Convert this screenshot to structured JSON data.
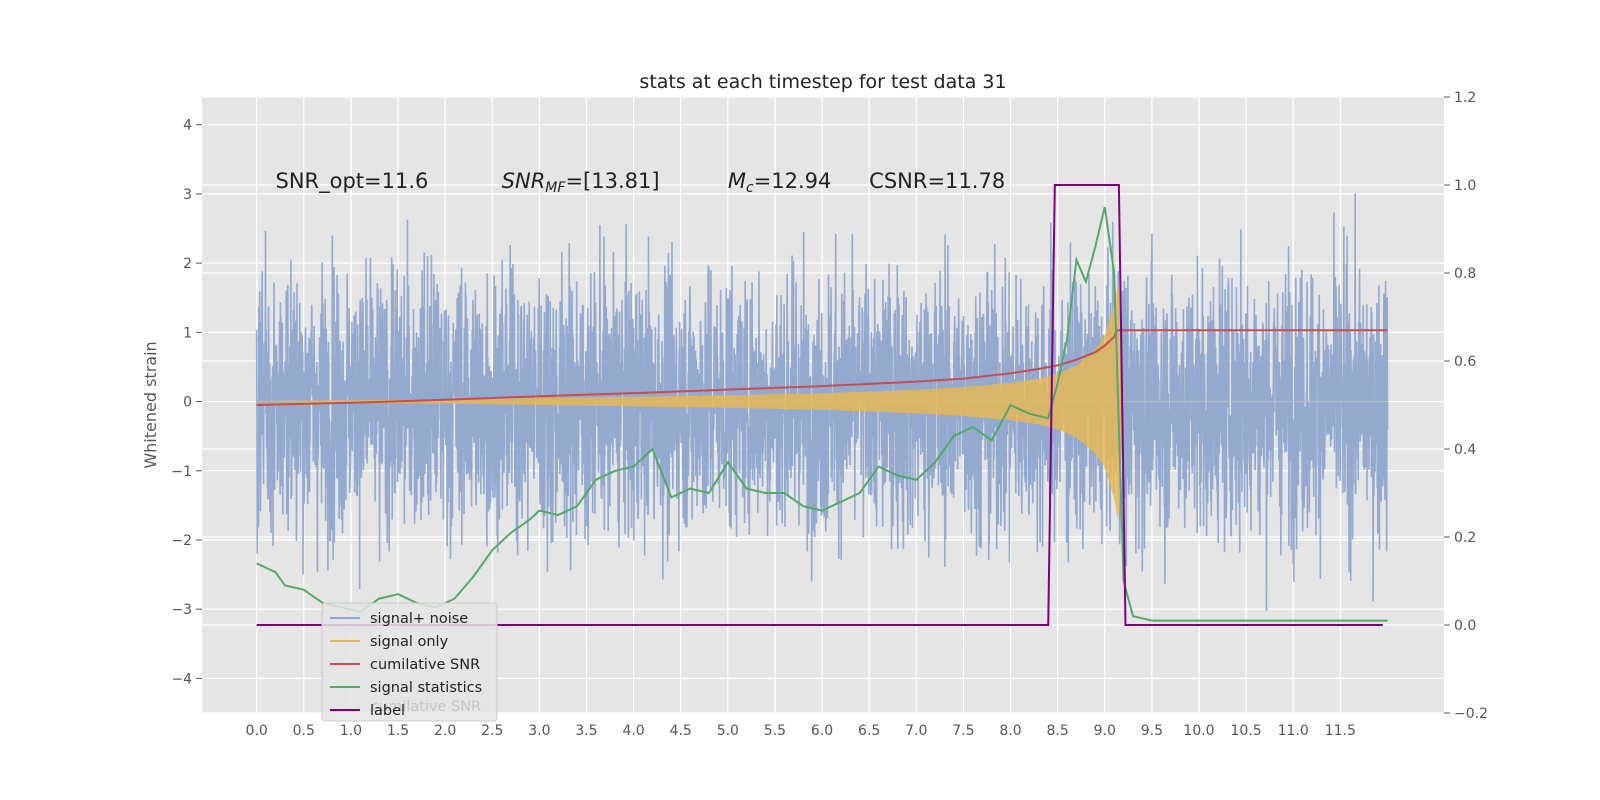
{
  "chart_data": {
    "type": "line",
    "title": "stats at each timestep for test data 31",
    "ylabel": "Whitened strain",
    "xlim": [
      -0.58,
      12.6
    ],
    "ylim_left": [
      -4.5,
      4.4
    ],
    "ylim_right": [
      -0.2,
      1.2
    ],
    "x_ticks": [
      "0.0",
      "0.5",
      "1.0",
      "1.5",
      "2.0",
      "2.5",
      "3.0",
      "3.5",
      "4.0",
      "4.5",
      "5.0",
      "5.5",
      "6.0",
      "6.5",
      "7.0",
      "7.5",
      "8.0",
      "8.5",
      "9.0",
      "9.5",
      "10.0",
      "10.5",
      "11.0",
      "11.5"
    ],
    "y_ticks_left": [
      "4",
      "3",
      "2",
      "1",
      "0",
      "−1",
      "−2",
      "−3",
      "−4"
    ],
    "y_ticks_right": [
      "1.2",
      "1.0",
      "0.8",
      "0.6",
      "0.4",
      "0.2",
      "0.0",
      "−0.2"
    ],
    "annotations": [
      {
        "name": "snr-opt",
        "text": "SNR_opt=11.6",
        "x": 0.2,
        "y": 3.2
      },
      {
        "name": "snr-mf",
        "text": "SNR_MF=[13.81]",
        "x": 2.6,
        "y": 3.2
      },
      {
        "name": "mc",
        "text": "M_c=12.94",
        "x": 5.0,
        "y": 3.2
      },
      {
        "name": "csnr",
        "text": "CSNR=11.78",
        "x": 6.5,
        "y": 3.2
      }
    ],
    "series": [
      {
        "name": "signal+ noise",
        "axis": "left",
        "color": "#8fa5cc",
        "noise_amplitude": 1.0,
        "samples": 4096
      },
      {
        "name": "signal only",
        "axis": "left",
        "color": "#e8b84f",
        "envelope_x": [
          0.0,
          1.0,
          2.0,
          3.0,
          4.0,
          5.0,
          6.0,
          7.0,
          7.5,
          8.0,
          8.3,
          8.5,
          8.7,
          8.9,
          9.0,
          9.1,
          9.15,
          9.2,
          12.0
        ],
        "envelope_y": [
          0.01,
          0.02,
          0.03,
          0.05,
          0.07,
          0.09,
          0.12,
          0.17,
          0.21,
          0.27,
          0.33,
          0.4,
          0.52,
          0.75,
          0.95,
          1.4,
          1.8,
          0.0,
          0.0
        ]
      },
      {
        "name": "cumilative SNR",
        "axis": "right",
        "color": "#c44e52",
        "x": [
          0.0,
          1.0,
          2.0,
          3.0,
          4.0,
          5.0,
          6.0,
          7.0,
          7.5,
          8.0,
          8.3,
          8.5,
          8.7,
          8.9,
          9.0,
          9.1,
          9.13,
          12.0
        ],
        "y": [
          0.5,
          0.505,
          0.512,
          0.52,
          0.527,
          0.535,
          0.543,
          0.553,
          0.56,
          0.572,
          0.582,
          0.59,
          0.603,
          0.62,
          0.635,
          0.655,
          0.67,
          0.67
        ]
      },
      {
        "name": "signal statistics",
        "axis": "right",
        "color": "#55a868",
        "x": [
          0.0,
          0.2,
          0.3,
          0.5,
          0.7,
          0.9,
          1.1,
          1.3,
          1.5,
          1.7,
          1.9,
          2.1,
          2.3,
          2.5,
          2.7,
          2.9,
          3.0,
          3.2,
          3.4,
          3.6,
          3.8,
          4.0,
          4.2,
          4.4,
          4.6,
          4.8,
          5.0,
          5.2,
          5.4,
          5.6,
          5.8,
          6.0,
          6.2,
          6.4,
          6.6,
          6.8,
          7.0,
          7.2,
          7.4,
          7.6,
          7.8,
          8.0,
          8.2,
          8.4,
          8.5,
          8.6,
          8.7,
          8.8,
          8.9,
          9.0,
          9.1,
          9.2,
          9.3,
          9.5,
          10.0,
          10.5,
          11.0,
          11.5,
          12.0
        ],
        "y": [
          0.14,
          0.12,
          0.09,
          0.08,
          0.05,
          0.04,
          0.03,
          0.06,
          0.07,
          0.05,
          0.04,
          0.06,
          0.11,
          0.17,
          0.21,
          0.24,
          0.26,
          0.25,
          0.27,
          0.33,
          0.35,
          0.36,
          0.4,
          0.29,
          0.31,
          0.3,
          0.37,
          0.31,
          0.3,
          0.3,
          0.27,
          0.26,
          0.28,
          0.3,
          0.36,
          0.34,
          0.33,
          0.37,
          0.43,
          0.45,
          0.42,
          0.5,
          0.48,
          0.47,
          0.55,
          0.65,
          0.83,
          0.78,
          0.86,
          0.95,
          0.8,
          0.1,
          0.02,
          0.01,
          0.01,
          0.01,
          0.01,
          0.01,
          0.01
        ]
      },
      {
        "name": "label",
        "axis": "right",
        "color": "#800080",
        "x": [
          0.0,
          8.4,
          8.47,
          9.15,
          9.22,
          11.95
        ],
        "y": [
          0.0,
          0.0,
          1.0,
          1.0,
          0.0,
          0.0
        ]
      }
    ],
    "legend": {
      "placement": "lower-left",
      "ghost_text": "cumilative SNR"
    }
  }
}
